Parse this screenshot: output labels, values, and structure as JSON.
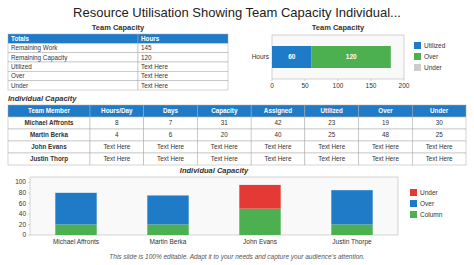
{
  "title": "Resource Utilisation Showing Team Capacity Individual...",
  "footer": "This slide is 100% editable. Adapt it to your needs and capture your audience's attention.",
  "chart_data": [
    {
      "type": "table",
      "title": "Team Capacity",
      "columns": [
        "Totals",
        "Hours"
      ],
      "rows": [
        [
          "Remaining Work",
          "145"
        ],
        [
          "Remaining Capacity",
          "120"
        ],
        [
          "Utilized",
          "Text Here"
        ],
        [
          "Over",
          "Text Here"
        ],
        [
          "Under",
          "Text Here"
        ]
      ]
    },
    {
      "type": "bar",
      "title": "Team Capacity",
      "orientation": "horizontal",
      "stacked": true,
      "categories": [
        "Hours"
      ],
      "series": [
        {
          "name": "Utilized",
          "color": "#1f7bc8",
          "values": [
            60
          ]
        },
        {
          "name": "Over",
          "color": "#4caf50",
          "values": [
            120
          ]
        },
        {
          "name": "Under",
          "color": "#cccccc",
          "values": [
            0
          ]
        }
      ],
      "xlim": [
        0,
        200
      ],
      "xticks": [
        0,
        50,
        100,
        150,
        200
      ],
      "data_labels": true,
      "legend": "right"
    },
    {
      "type": "table",
      "title": "Individual Capacity",
      "columns": [
        "Team Member",
        "Hours/Day",
        "Days",
        "Capacity",
        "Assigned",
        "Utilized",
        "Over",
        "Under"
      ],
      "rows": [
        [
          "Michael Affronts",
          "8",
          "7",
          "31",
          "42",
          "23",
          "19",
          "30"
        ],
        [
          "Martin Berka",
          "4",
          "6",
          "20",
          "40",
          "25",
          "48",
          "25"
        ],
        [
          "John Evans",
          "Text Here",
          "Text Here",
          "Text Here",
          "Text Here",
          "Text Here",
          "Text Here",
          "Text Here"
        ],
        [
          "Justin Thorp",
          "Text Here",
          "Text Here",
          "Text Here",
          "Text Here",
          "Text Here",
          "Text Here",
          "Text Here"
        ]
      ]
    },
    {
      "type": "bar",
      "title": "Individual Capacity",
      "stacked": true,
      "categories": [
        "Michael Affronts",
        "Martin Berka",
        "John Evans",
        "Justin Thorpe"
      ],
      "series": [
        {
          "name": "Column",
          "color": "#4caf50",
          "values": [
            20,
            20,
            50,
            20
          ]
        },
        {
          "name": "Over",
          "color": "#1f7bc8",
          "values": [
            60,
            55,
            0,
            65
          ]
        },
        {
          "name": "Under",
          "color": "#e53935",
          "values": [
            0,
            0,
            45,
            0
          ]
        }
      ],
      "ylim": [
        0,
        110
      ],
      "yticks": [
        0,
        20,
        40,
        60,
        80,
        100
      ],
      "legend": "right"
    }
  ]
}
